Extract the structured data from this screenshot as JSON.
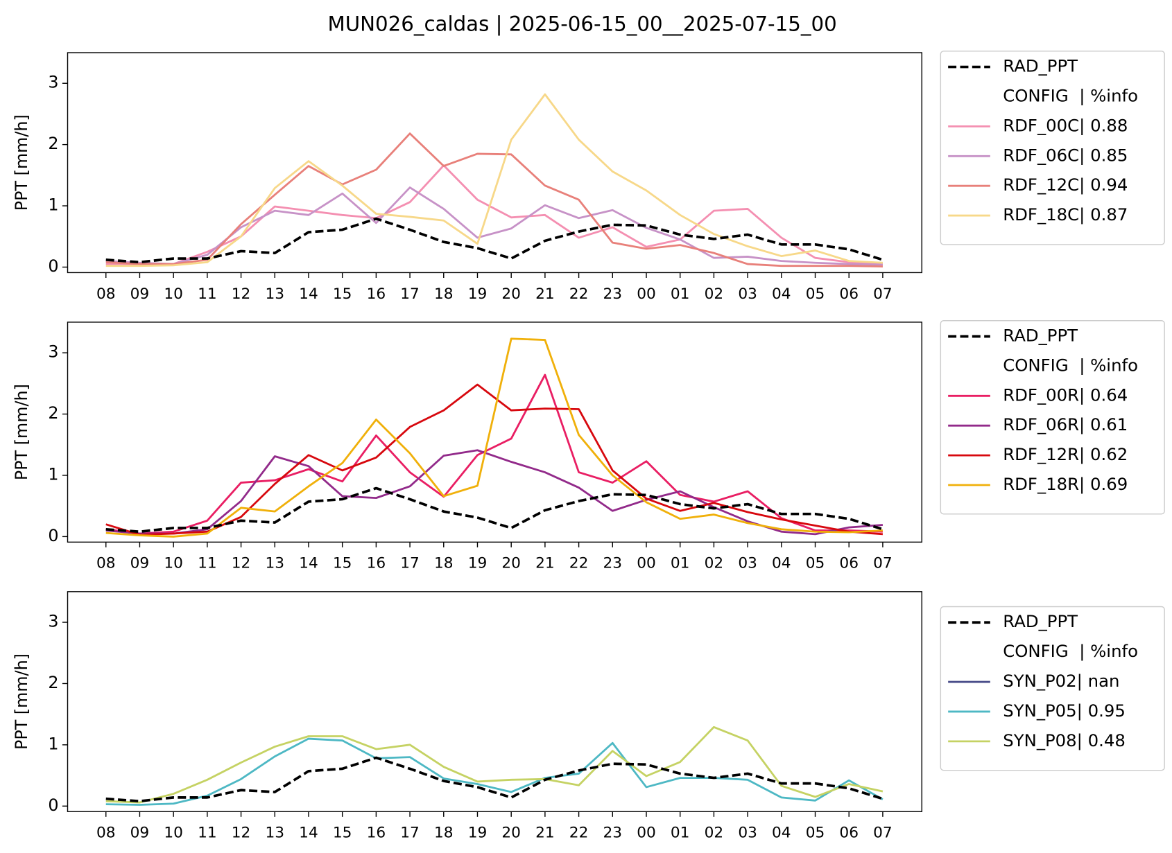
{
  "title": "MUN026_caldas | 2025-06-15_00__2025-07-15_00",
  "chart_data": [
    {
      "type": "line",
      "ylabel": "PPT [mm/h]",
      "categories": [
        "08",
        "09",
        "10",
        "11",
        "12",
        "13",
        "14",
        "15",
        "16",
        "17",
        "18",
        "19",
        "20",
        "21",
        "22",
        "23",
        "00",
        "01",
        "02",
        "03",
        "04",
        "05",
        "06",
        "07"
      ],
      "ylim": [
        -0.09,
        3.5
      ],
      "yticks": [
        0,
        1,
        2,
        3
      ],
      "legend_header": "CONFIG  | %info",
      "legend": "outside right",
      "series": [
        {
          "name": "RAD_PPT",
          "color": "#000000",
          "dashed": true,
          "values": [
            0.12,
            0.08,
            0.14,
            0.14,
            0.26,
            0.23,
            0.57,
            0.61,
            0.79,
            0.61,
            0.41,
            0.31,
            0.14,
            0.43,
            0.58,
            0.69,
            0.68,
            0.53,
            0.46,
            0.53,
            0.37,
            0.37,
            0.29,
            0.12
          ]
        },
        {
          "name": "RDF_00C| 0.88",
          "color": "#f48fb1",
          "values": [
            0.05,
            0.04,
            0.05,
            0.25,
            0.5,
            0.99,
            0.92,
            0.85,
            0.8,
            1.06,
            1.66,
            1.1,
            0.81,
            0.85,
            0.48,
            0.65,
            0.33,
            0.45,
            0.92,
            0.95,
            0.48,
            0.15,
            0.08,
            0.05
          ]
        },
        {
          "name": "RDF_06C| 0.85",
          "color": "#c792c7",
          "values": [
            0.1,
            0.07,
            0.05,
            0.2,
            0.65,
            0.92,
            0.85,
            1.2,
            0.72,
            1.3,
            0.95,
            0.48,
            0.63,
            1.01,
            0.8,
            0.93,
            0.64,
            0.45,
            0.15,
            0.17,
            0.1,
            0.07,
            0.05,
            0.04
          ]
        },
        {
          "name": "RDF_12C| 0.94",
          "color": "#e8807a",
          "values": [
            0.08,
            0.05,
            0.05,
            0.12,
            0.7,
            1.18,
            1.65,
            1.35,
            1.59,
            2.18,
            1.65,
            1.85,
            1.84,
            1.33,
            1.1,
            0.4,
            0.3,
            0.36,
            0.23,
            0.05,
            0.02,
            0.02,
            0.02,
            0.01
          ]
        },
        {
          "name": "RDF_18C| 0.87",
          "color": "#f7d889",
          "values": [
            0.02,
            0.02,
            0.03,
            0.08,
            0.5,
            1.29,
            1.73,
            1.33,
            0.87,
            0.82,
            0.76,
            0.38,
            2.08,
            2.82,
            2.08,
            1.56,
            1.25,
            0.85,
            0.54,
            0.34,
            0.18,
            0.27,
            0.1,
            0.07
          ]
        }
      ]
    },
    {
      "type": "line",
      "ylabel": "PPT [mm/h]",
      "categories": [
        "08",
        "09",
        "10",
        "11",
        "12",
        "13",
        "14",
        "15",
        "16",
        "17",
        "18",
        "19",
        "20",
        "21",
        "22",
        "23",
        "00",
        "01",
        "02",
        "03",
        "04",
        "05",
        "06",
        "07"
      ],
      "ylim": [
        -0.09,
        3.5
      ],
      "yticks": [
        0,
        1,
        2,
        3
      ],
      "legend_header": "CONFIG  | %info",
      "legend": "outside right",
      "series": [
        {
          "name": "RAD_PPT",
          "color": "#000000",
          "dashed": true,
          "values": [
            0.12,
            0.08,
            0.14,
            0.14,
            0.26,
            0.23,
            0.57,
            0.61,
            0.79,
            0.61,
            0.41,
            0.31,
            0.14,
            0.43,
            0.58,
            0.69,
            0.68,
            0.53,
            0.46,
            0.53,
            0.37,
            0.37,
            0.29,
            0.12
          ]
        },
        {
          "name": "RDF_00R| 0.64",
          "color": "#e91e63",
          "values": [
            0.12,
            0.05,
            0.08,
            0.26,
            0.88,
            0.92,
            1.1,
            0.9,
            1.65,
            1.05,
            0.65,
            1.33,
            1.6,
            2.64,
            1.05,
            0.88,
            1.23,
            0.68,
            0.57,
            0.74,
            0.3,
            0.1,
            0.1,
            0.08
          ]
        },
        {
          "name": "RDF_06R| 0.61",
          "color": "#922a8a",
          "values": [
            0.1,
            0.05,
            0.05,
            0.12,
            0.58,
            1.31,
            1.15,
            0.66,
            0.63,
            0.82,
            1.32,
            1.41,
            1.22,
            1.05,
            0.8,
            0.42,
            0.6,
            0.74,
            0.48,
            0.25,
            0.08,
            0.04,
            0.15,
            0.19
          ]
        },
        {
          "name": "RDF_12R| 0.62",
          "color": "#d7080e",
          "values": [
            0.2,
            0.03,
            0.05,
            0.08,
            0.32,
            0.86,
            1.33,
            1.08,
            1.29,
            1.79,
            2.06,
            2.48,
            2.06,
            2.09,
            2.08,
            1.08,
            0.62,
            0.42,
            0.55,
            0.4,
            0.28,
            0.18,
            0.08,
            0.04
          ]
        },
        {
          "name": "RDF_18R| 0.69",
          "color": "#f0b00a",
          "values": [
            0.06,
            0.02,
            0.0,
            0.05,
            0.47,
            0.41,
            0.82,
            1.2,
            1.91,
            1.36,
            0.66,
            0.83,
            3.23,
            3.21,
            1.66,
            1.0,
            0.56,
            0.29,
            0.36,
            0.22,
            0.12,
            0.08,
            0.07,
            0.1
          ]
        }
      ]
    },
    {
      "type": "line",
      "ylabel": "PPT [mm/h]",
      "categories": [
        "08",
        "09",
        "10",
        "11",
        "12",
        "13",
        "14",
        "15",
        "16",
        "17",
        "18",
        "19",
        "20",
        "21",
        "22",
        "23",
        "00",
        "01",
        "02",
        "03",
        "04",
        "05",
        "06",
        "07"
      ],
      "ylim": [
        -0.09,
        3.5
      ],
      "yticks": [
        0,
        1,
        2,
        3
      ],
      "legend_header": "CONFIG  | %info",
      "legend": "outside right",
      "series": [
        {
          "name": "RAD_PPT",
          "color": "#000000",
          "dashed": true,
          "values": [
            0.12,
            0.08,
            0.14,
            0.14,
            0.26,
            0.23,
            0.57,
            0.61,
            0.79,
            0.61,
            0.41,
            0.31,
            0.14,
            0.43,
            0.58,
            0.69,
            0.68,
            0.53,
            0.46,
            0.53,
            0.37,
            0.37,
            0.29,
            0.12
          ]
        },
        {
          "name": "SYN_P02| nan",
          "color": "#4a4e8a",
          "values": [
            null,
            null,
            null,
            null,
            null,
            null,
            null,
            null,
            null,
            null,
            null,
            null,
            null,
            null,
            null,
            null,
            null,
            null,
            null,
            null,
            null,
            null,
            null,
            null
          ]
        },
        {
          "name": "SYN_P05| 0.95",
          "color": "#4db8c4",
          "values": [
            0.03,
            0.02,
            0.04,
            0.17,
            0.44,
            0.81,
            1.1,
            1.07,
            0.78,
            0.8,
            0.45,
            0.36,
            0.23,
            0.46,
            0.53,
            1.03,
            0.31,
            0.46,
            0.46,
            0.43,
            0.14,
            0.09,
            0.42,
            0.11
          ]
        },
        {
          "name": "SYN_P08| 0.48",
          "color": "#c5d263",
          "values": [
            0.08,
            0.06,
            0.2,
            0.43,
            0.71,
            0.97,
            1.14,
            1.14,
            0.93,
            1.0,
            0.64,
            0.4,
            0.43,
            0.44,
            0.34,
            0.9,
            0.49,
            0.72,
            1.29,
            1.07,
            0.33,
            0.15,
            0.36,
            0.24
          ]
        }
      ]
    }
  ]
}
